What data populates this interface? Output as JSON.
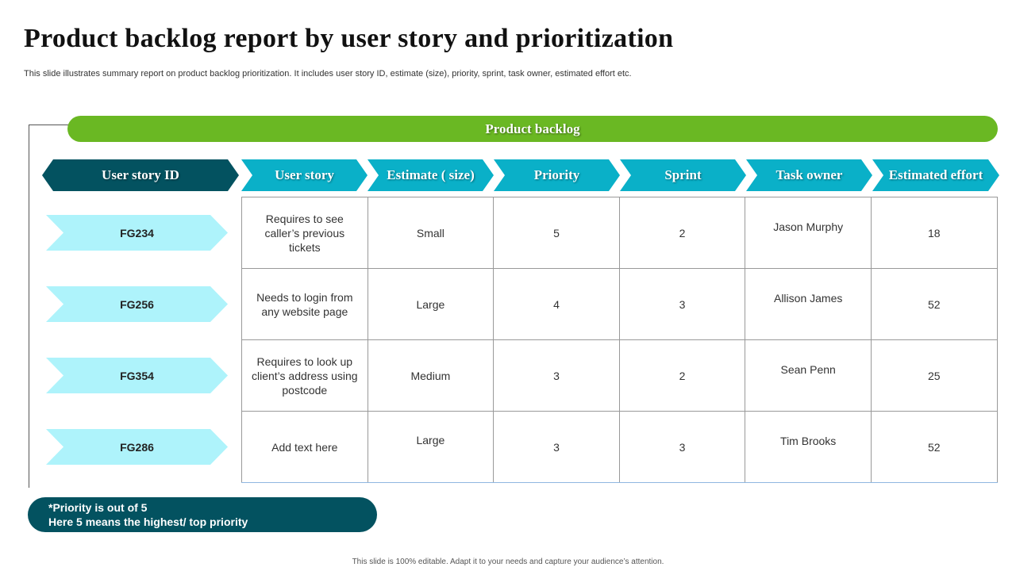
{
  "title": "Product backlog report by user story and prioritization",
  "subtitle": "This slide illustrates summary report on product backlog prioritization. It includes user story ID, estimate (size), priority, sprint, task owner, estimated effort etc.",
  "banner": "Product backlog",
  "headers": [
    "User story ID",
    "User story",
    "Estimate ( size)",
    "Priority",
    "Sprint",
    "Task owner",
    "Estimated effort"
  ],
  "rows": [
    {
      "id": "FG234",
      "story": "Requires to see caller’s previous tickets",
      "estimate": "Small",
      "priority": "5",
      "sprint": "2",
      "owner": "Jason Murphy",
      "effort": "18"
    },
    {
      "id": "FG256",
      "story": "Needs to login from any website page",
      "estimate": "Large",
      "priority": "4",
      "sprint": "3",
      "owner": "Allison James",
      "effort": "52"
    },
    {
      "id": "FG354",
      "story": "Requires to look up client’s address using postcode",
      "estimate": "Medium",
      "priority": "3",
      "sprint": "2",
      "owner": "Sean Penn",
      "effort": "25"
    },
    {
      "id": "FG286",
      "story": "Add text here",
      "estimate": "Large",
      "priority": "3",
      "sprint": "3",
      "owner": "Tim Brooks",
      "effort": "52"
    }
  ],
  "note": {
    "line1": "*Priority is out of 5",
    "line2": "Here 5 means the highest/ top priority"
  },
  "footer": "This slide is 100% editable. Adapt it to your needs and capture your audience’s attention.",
  "colors": {
    "banner_green": "#6ab823",
    "header_dark_teal": "#035260",
    "header_teal": "#0ab0c8",
    "id_light_cyan": "#aef3fb",
    "note_dark_teal": "#035260"
  }
}
